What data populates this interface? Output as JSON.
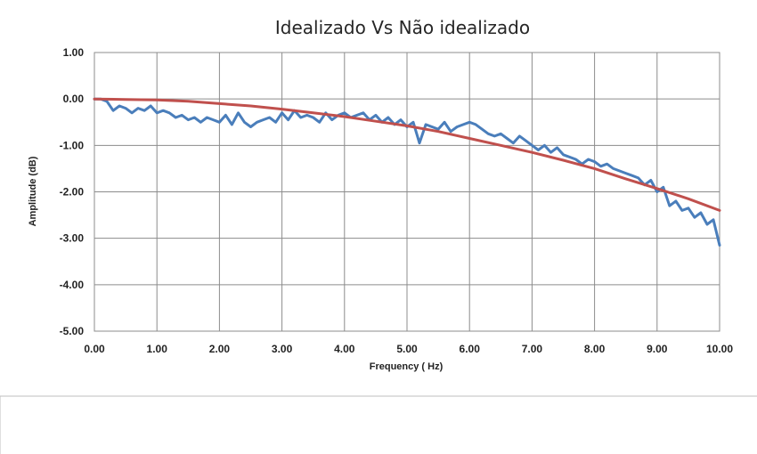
{
  "chart_data": {
    "type": "line",
    "title": "Idealizado Vs Não idealizado",
    "xlabel": "Frequency (   Hz)",
    "ylabel": "Amplitude (dB)",
    "xlim": [
      0,
      10
    ],
    "ylim": [
      -5,
      1
    ],
    "x_ticks": [
      "0.00",
      "1.00",
      "2.00",
      "3.00",
      "4.00",
      "5.00",
      "6.00",
      "7.00",
      "8.00",
      "9.00",
      "10.00"
    ],
    "y_ticks": [
      "1.00",
      "0.00",
      "-1.00",
      "-2.00",
      "-3.00",
      "-4.00",
      "-5.00"
    ],
    "grid": true,
    "series": [
      {
        "color": "#4a7ebb",
        "x": [
          0.0,
          0.1,
          0.2,
          0.3,
          0.4,
          0.5,
          0.6,
          0.7,
          0.8,
          0.9,
          1.0,
          1.1,
          1.2,
          1.3,
          1.4,
          1.5,
          1.6,
          1.7,
          1.8,
          1.9,
          2.0,
          2.1,
          2.2,
          2.3,
          2.4,
          2.5,
          2.6,
          2.7,
          2.8,
          2.9,
          3.0,
          3.1,
          3.2,
          3.3,
          3.4,
          3.5,
          3.6,
          3.7,
          3.8,
          3.9,
          4.0,
          4.1,
          4.2,
          4.3,
          4.4,
          4.5,
          4.6,
          4.7,
          4.8,
          4.9,
          5.0,
          5.1,
          5.2,
          5.3,
          5.4,
          5.5,
          5.6,
          5.7,
          5.8,
          5.9,
          6.0,
          6.1,
          6.2,
          6.3,
          6.4,
          6.5,
          6.6,
          6.7,
          6.8,
          6.9,
          7.0,
          7.1,
          7.2,
          7.3,
          7.4,
          7.5,
          7.6,
          7.7,
          7.8,
          7.9,
          8.0,
          8.1,
          8.2,
          8.3,
          8.4,
          8.5,
          8.6,
          8.7,
          8.8,
          8.9,
          9.0,
          9.1,
          9.2,
          9.3,
          9.4,
          9.5,
          9.6,
          9.7,
          9.8,
          9.9,
          10.0
        ],
        "y": [
          0.0,
          0.0,
          -0.05,
          -0.25,
          -0.15,
          -0.2,
          -0.3,
          -0.2,
          -0.25,
          -0.15,
          -0.3,
          -0.25,
          -0.3,
          -0.4,
          -0.35,
          -0.45,
          -0.4,
          -0.5,
          -0.4,
          -0.45,
          -0.5,
          -0.35,
          -0.55,
          -0.3,
          -0.5,
          -0.6,
          -0.5,
          -0.45,
          -0.4,
          -0.5,
          -0.3,
          -0.45,
          -0.25,
          -0.4,
          -0.35,
          -0.4,
          -0.5,
          -0.3,
          -0.45,
          -0.35,
          -0.3,
          -0.4,
          -0.35,
          -0.3,
          -0.45,
          -0.35,
          -0.5,
          -0.4,
          -0.55,
          -0.45,
          -0.6,
          -0.5,
          -0.95,
          -0.55,
          -0.6,
          -0.65,
          -0.5,
          -0.7,
          -0.6,
          -0.55,
          -0.5,
          -0.55,
          -0.65,
          -0.75,
          -0.8,
          -0.75,
          -0.85,
          -0.95,
          -0.8,
          -0.9,
          -1.0,
          -1.1,
          -1.0,
          -1.15,
          -1.05,
          -1.2,
          -1.25,
          -1.3,
          -1.4,
          -1.3,
          -1.35,
          -1.45,
          -1.4,
          -1.5,
          -1.55,
          -1.6,
          -1.65,
          -1.7,
          -1.85,
          -1.75,
          -2.0,
          -1.9,
          -2.3,
          -2.2,
          -2.4,
          -2.35,
          -2.55,
          -2.45,
          -2.7,
          -2.6,
          -3.15
        ]
      },
      {
        "color": "#c0504d",
        "x": [
          0.0,
          0.5,
          1.0,
          1.5,
          2.0,
          2.5,
          3.0,
          3.5,
          4.0,
          4.5,
          5.0,
          5.5,
          6.0,
          6.5,
          7.0,
          7.5,
          8.0,
          8.5,
          9.0,
          9.5,
          10.0
        ],
        "y": [
          0.0,
          -0.01,
          -0.02,
          -0.05,
          -0.1,
          -0.15,
          -0.22,
          -0.3,
          -0.38,
          -0.48,
          -0.58,
          -0.7,
          -0.85,
          -1.0,
          -1.15,
          -1.32,
          -1.5,
          -1.72,
          -1.93,
          -2.15,
          -2.4
        ]
      }
    ]
  }
}
